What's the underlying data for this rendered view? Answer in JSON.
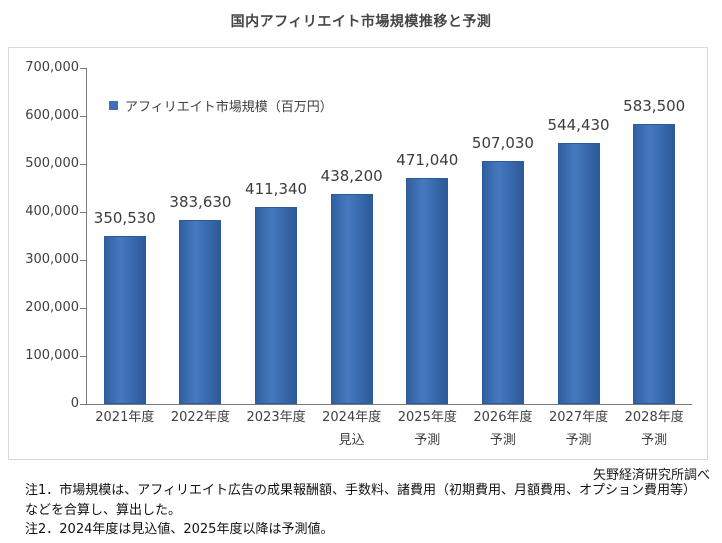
{
  "title": "国内アフィリエイト市場規模推移と予測",
  "legend": {
    "label": "アフィリエイト市場規模（百万円）",
    "marker_color": "#3f6fb2"
  },
  "source": "矢野経済研究所調べ",
  "notes": [
    "注1．市場規模は、アフィリエイト広告の成果報酬額、手数料、諸費用（初期費用、月額費用、オプション費用等）などを合算し、算出した。",
    "注2．2024年度は見込値、2025年度以降は予測値。"
  ],
  "chart_data": {
    "type": "bar",
    "title": "国内アフィリエイト市場規模推移と予測",
    "series_name": "アフィリエイト市場規模（百万円）",
    "categories": [
      {
        "label": "2021年度",
        "sublabel": ""
      },
      {
        "label": "2022年度",
        "sublabel": ""
      },
      {
        "label": "2023年度",
        "sublabel": ""
      },
      {
        "label": "2024年度",
        "sublabel": "見込"
      },
      {
        "label": "2025年度",
        "sublabel": "予測"
      },
      {
        "label": "2026年度",
        "sublabel": "予測"
      },
      {
        "label": "2027年度",
        "sublabel": "予測"
      },
      {
        "label": "2028年度",
        "sublabel": "予測"
      }
    ],
    "values": [
      350530,
      383630,
      411340,
      438200,
      471040,
      507030,
      544430,
      583500
    ],
    "value_labels": [
      "350,530",
      "383,630",
      "411,340",
      "438,200",
      "471,040",
      "507,030",
      "544,430",
      "583,500"
    ],
    "xlabel": "",
    "ylabel": "",
    "ylim": [
      0,
      700000
    ],
    "ytick_step": 100000,
    "grid": false,
    "legend_position": "top-left-inside",
    "bar_color": "#3a6cb0",
    "axis_color": "#7a7a7a"
  }
}
